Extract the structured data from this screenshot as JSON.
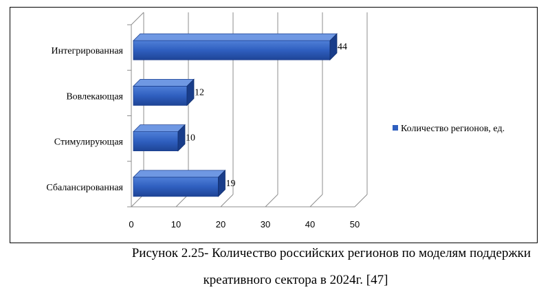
{
  "chart_data": {
    "type": "bar",
    "orientation": "horizontal",
    "three_d": true,
    "categories": [
      "Интегрированная",
      "Вовлекающая",
      "Стимулирующая",
      "Сбалансированная"
    ],
    "series": [
      {
        "name": "Количество регионов, ед.",
        "values": [
          44,
          12,
          10,
          19
        ],
        "color": "#2f5fbf"
      }
    ],
    "data_labels": [
      "44",
      "12",
      "10",
      "19"
    ],
    "xlim": [
      0,
      50
    ],
    "xticks": [
      "0",
      "10",
      "20",
      "30",
      "40",
      "50"
    ],
    "grid": "vertical",
    "legend_position": "right"
  },
  "caption": {
    "line1": "Рисунок 2.25- Количество российских регионов по моделям поддержки",
    "line2": "креативного сектора в 2024г. [47]"
  }
}
